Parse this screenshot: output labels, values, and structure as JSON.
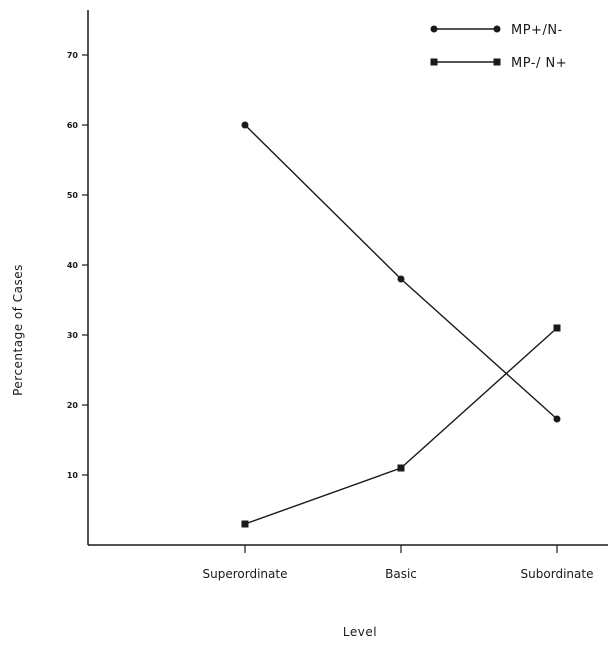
{
  "chart_data": {
    "type": "line",
    "xlabel": "Level",
    "ylabel": "Percentage of Cases",
    "categories": [
      "Superordinate",
      "Basic",
      "Subordinate"
    ],
    "ylim": [
      0,
      75
    ],
    "yticks": [
      "10",
      "20",
      "30",
      "40",
      "50",
      "60",
      "70"
    ],
    "grid": false,
    "legend_position": "top-right",
    "series": [
      {
        "name": "MP+/N-",
        "marker": "circle",
        "values": [
          60,
          38,
          18
        ]
      },
      {
        "name": "MP-/ N+",
        "marker": "square",
        "values": [
          3,
          11,
          31
        ]
      }
    ]
  }
}
